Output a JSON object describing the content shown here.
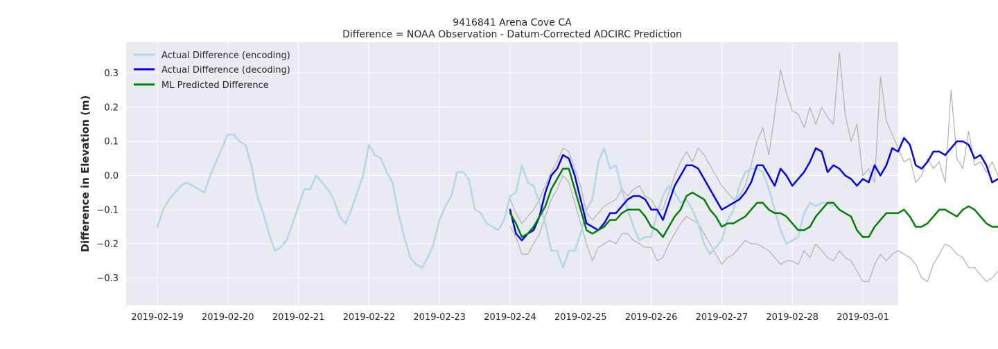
{
  "chart_data": {
    "type": "line",
    "title": "9416841 Arena Cove CA",
    "subtitle": "Difference = NOAA Observation - Datum-Corrected ADCIRC Prediction",
    "xlabel": "",
    "ylabel": "Difference in Elevation (m)",
    "x_ticks": [
      "2019-02-19",
      "2019-02-20",
      "2019-02-21",
      "2019-02-22",
      "2019-02-23",
      "2019-02-24",
      "2019-02-25",
      "2019-02-26",
      "2019-02-27",
      "2019-02-28",
      "2019-03-01"
    ],
    "y_ticks": [
      "0.3",
      "0.2",
      "0.1",
      "0.0",
      "−0.1",
      "−0.2",
      "−0.3"
    ],
    "ylim": [
      -0.38,
      0.39
    ],
    "grid": true,
    "legend_position": "top-left",
    "series": [
      {
        "name": "Actual Difference (encoding)",
        "color": "#add8e6",
        "x_start": "2019-02-19T00:00",
        "step_hours": 2,
        "values": [
          -0.15,
          -0.1,
          -0.07,
          -0.05,
          -0.03,
          -0.02,
          -0.03,
          -0.04,
          -0.05,
          0.0,
          0.04,
          0.08,
          0.12,
          0.12,
          0.1,
          0.09,
          0.03,
          -0.06,
          -0.11,
          -0.17,
          -0.22,
          -0.21,
          -0.19,
          -0.14,
          -0.09,
          -0.04,
          -0.04,
          0.0,
          -0.02,
          -0.04,
          -0.07,
          -0.12,
          -0.14,
          -0.1,
          -0.05,
          0.0,
          0.09,
          0.06,
          0.05,
          0.01,
          -0.02,
          -0.11,
          -0.18,
          -0.24,
          -0.26,
          -0.27,
          -0.24,
          -0.2,
          -0.13,
          -0.09,
          -0.06,
          0.01,
          0.01,
          -0.01,
          -0.1,
          -0.11,
          -0.14,
          -0.15,
          -0.16,
          -0.13,
          -0.06,
          -0.05,
          0.03,
          -0.02,
          -0.03,
          -0.08,
          -0.14,
          -0.22,
          -0.22,
          -0.27,
          -0.22,
          -0.22,
          -0.17,
          -0.1,
          -0.07,
          0.04,
          0.08,
          0.02,
          0.03,
          -0.04,
          -0.1,
          -0.15,
          -0.19,
          -0.18,
          -0.18,
          -0.11,
          -0.06,
          -0.03,
          -0.05,
          -0.08,
          -0.07,
          -0.1,
          -0.14,
          -0.2,
          -0.23,
          -0.21,
          -0.19,
          -0.13,
          -0.1,
          -0.03,
          0.01,
          0.02,
          0.02,
          0.01,
          -0.04,
          -0.1,
          -0.16,
          -0.2,
          -0.19,
          -0.18,
          -0.11,
          -0.08,
          -0.09,
          -0.08,
          -0.08,
          -0.09
        ]
      },
      {
        "name": "Actual Difference (decoding)",
        "color": "#0000ee",
        "x_start": "2019-02-24T00:00",
        "step_hours": 2,
        "values": [
          -0.1,
          -0.17,
          -0.19,
          -0.17,
          -0.16,
          -0.12,
          -0.05,
          0.0,
          0.02,
          0.06,
          0.05,
          0.0,
          -0.07,
          -0.14,
          -0.15,
          -0.16,
          -0.14,
          -0.11,
          -0.11,
          -0.09,
          -0.07,
          -0.06,
          -0.06,
          -0.07,
          -0.1,
          -0.1,
          -0.13,
          -0.08,
          -0.03,
          0.0,
          0.03,
          0.03,
          0.02,
          -0.01,
          -0.04,
          -0.07,
          -0.1,
          -0.09,
          -0.08,
          -0.07,
          -0.05,
          -0.02,
          0.03,
          0.03,
          0.0,
          -0.03,
          0.02,
          0.0,
          -0.03,
          -0.01,
          0.01,
          0.04,
          0.08,
          0.07,
          0.01,
          0.03,
          0.02,
          0.0,
          -0.01,
          -0.03,
          -0.01,
          -0.02,
          0.03,
          0.0,
          0.03,
          0.08,
          0.07,
          0.11,
          0.09,
          0.03,
          0.02,
          0.04,
          0.07,
          0.07,
          0.06,
          0.08,
          0.1,
          0.1,
          0.09,
          0.05,
          0.06,
          0.03,
          -0.02,
          -0.01,
          0.02,
          0.01,
          0.02,
          0.06,
          0.04,
          0.01,
          0.04,
          0.04,
          0.03,
          0.02,
          -0.01,
          -0.06,
          0.0,
          0.04,
          0.04,
          0.15,
          0.06,
          0.05,
          -0.01,
          -0.03,
          0.01,
          -0.03,
          0.0
        ]
      },
      {
        "name": "ML Predicted Difference",
        "color": "#008000",
        "x_start": "2019-02-24T00:00",
        "step_hours": 2,
        "values": [
          -0.11,
          -0.14,
          -0.18,
          -0.17,
          -0.15,
          -0.12,
          -0.09,
          -0.04,
          -0.01,
          0.02,
          0.02,
          -0.04,
          -0.1,
          -0.16,
          -0.17,
          -0.16,
          -0.15,
          -0.13,
          -0.13,
          -0.11,
          -0.1,
          -0.1,
          -0.1,
          -0.12,
          -0.15,
          -0.16,
          -0.18,
          -0.15,
          -0.12,
          -0.1,
          -0.06,
          -0.05,
          -0.06,
          -0.07,
          -0.1,
          -0.12,
          -0.15,
          -0.14,
          -0.14,
          -0.13,
          -0.12,
          -0.1,
          -0.08,
          -0.08,
          -0.1,
          -0.11,
          -0.11,
          -0.12,
          -0.14,
          -0.16,
          -0.16,
          -0.15,
          -0.12,
          -0.1,
          -0.08,
          -0.08,
          -0.1,
          -0.11,
          -0.12,
          -0.16,
          -0.18,
          -0.18,
          -0.15,
          -0.13,
          -0.11,
          -0.11,
          -0.11,
          -0.1,
          -0.12,
          -0.15,
          -0.15,
          -0.14,
          -0.12,
          -0.1,
          -0.1,
          -0.11,
          -0.12,
          -0.1,
          -0.09,
          -0.1,
          -0.12,
          -0.14,
          -0.15,
          -0.15,
          -0.14,
          -0.12,
          -0.11,
          -0.12,
          -0.12,
          -0.13,
          -0.14,
          -0.16,
          -0.16,
          -0.16,
          -0.15,
          -0.19,
          -0.2,
          -0.16,
          -0.14,
          -0.13,
          -0.13,
          -0.12,
          -0.11,
          -0.14,
          -0.15,
          -0.16,
          -0.15
        ]
      },
      {
        "name": "",
        "color": "#b0b0b0",
        "x_start": "2019-02-24T00:00",
        "step_hours": 2,
        "values": [
          -0.07,
          -0.11,
          -0.14,
          -0.12,
          -0.1,
          -0.07,
          -0.03,
          0.01,
          0.04,
          0.08,
          0.07,
          0.02,
          -0.03,
          -0.11,
          -0.13,
          -0.11,
          -0.09,
          -0.08,
          -0.07,
          -0.04,
          -0.06,
          -0.04,
          -0.03,
          -0.06,
          -0.07,
          -0.1,
          -0.1,
          -0.05,
          0.0,
          0.04,
          0.07,
          0.04,
          0.08,
          0.06,
          0.03,
          0.0,
          -0.03,
          -0.05,
          -0.07,
          -0.06,
          -0.03,
          0.03,
          0.1,
          0.14,
          0.06,
          0.18,
          0.31,
          0.24,
          0.19,
          0.18,
          0.14,
          0.2,
          0.15,
          0.2,
          0.17,
          0.15,
          0.36,
          0.18,
          0.1,
          0.15,
          0.0,
          0.02,
          -0.02,
          0.29,
          0.16,
          0.12,
          0.08,
          0.04,
          0.05,
          -0.02,
          0.0,
          0.05,
          0.02,
          0.04,
          -0.02,
          0.25,
          0.05,
          0.02,
          0.13,
          0.03,
          0.04,
          0.01,
          0.04,
          0.0,
          0.13,
          0.06,
          0.01,
          0.05,
          0.02,
          0.04,
          0.03,
          0.02,
          0.01,
          -0.01,
          -0.03,
          -0.04,
          0.01,
          0.02,
          0.08,
          0.04,
          0.03,
          -0.03,
          -0.05,
          0.04,
          0.0,
          0.01,
          0.06
        ]
      },
      {
        "name": "",
        "color": "#b0b0b0",
        "x_start": "2019-02-24T00:00",
        "step_hours": 2,
        "values": [
          -0.15,
          -0.18,
          -0.23,
          -0.23,
          -0.2,
          -0.17,
          -0.12,
          -0.07,
          -0.04,
          0.0,
          -0.02,
          -0.08,
          -0.14,
          -0.2,
          -0.25,
          -0.21,
          -0.2,
          -0.19,
          -0.2,
          -0.17,
          -0.17,
          -0.19,
          -0.2,
          -0.21,
          -0.21,
          -0.25,
          -0.24,
          -0.2,
          -0.17,
          -0.14,
          -0.12,
          -0.13,
          -0.14,
          -0.17,
          -0.2,
          -0.23,
          -0.26,
          -0.24,
          -0.23,
          -0.21,
          -0.19,
          -0.2,
          -0.2,
          -0.21,
          -0.22,
          -0.24,
          -0.26,
          -0.25,
          -0.25,
          -0.26,
          -0.22,
          -0.24,
          -0.2,
          -0.22,
          -0.24,
          -0.25,
          -0.22,
          -0.24,
          -0.25,
          -0.28,
          -0.31,
          -0.31,
          -0.26,
          -0.23,
          -0.25,
          -0.23,
          -0.22,
          -0.23,
          -0.24,
          -0.26,
          -0.3,
          -0.31,
          -0.26,
          -0.23,
          -0.2,
          -0.21,
          -0.23,
          -0.24,
          -0.27,
          -0.27,
          -0.29,
          -0.31,
          -0.3,
          -0.28,
          -0.28,
          -0.24,
          -0.2,
          -0.24,
          -0.25,
          -0.26,
          -0.25,
          -0.25,
          -0.27,
          -0.24,
          -0.28,
          -0.31,
          -0.33,
          -0.35,
          -0.31,
          -0.27,
          -0.22,
          -0.21,
          -0.26,
          -0.3,
          -0.25,
          -0.3,
          -0.33
        ]
      }
    ]
  }
}
